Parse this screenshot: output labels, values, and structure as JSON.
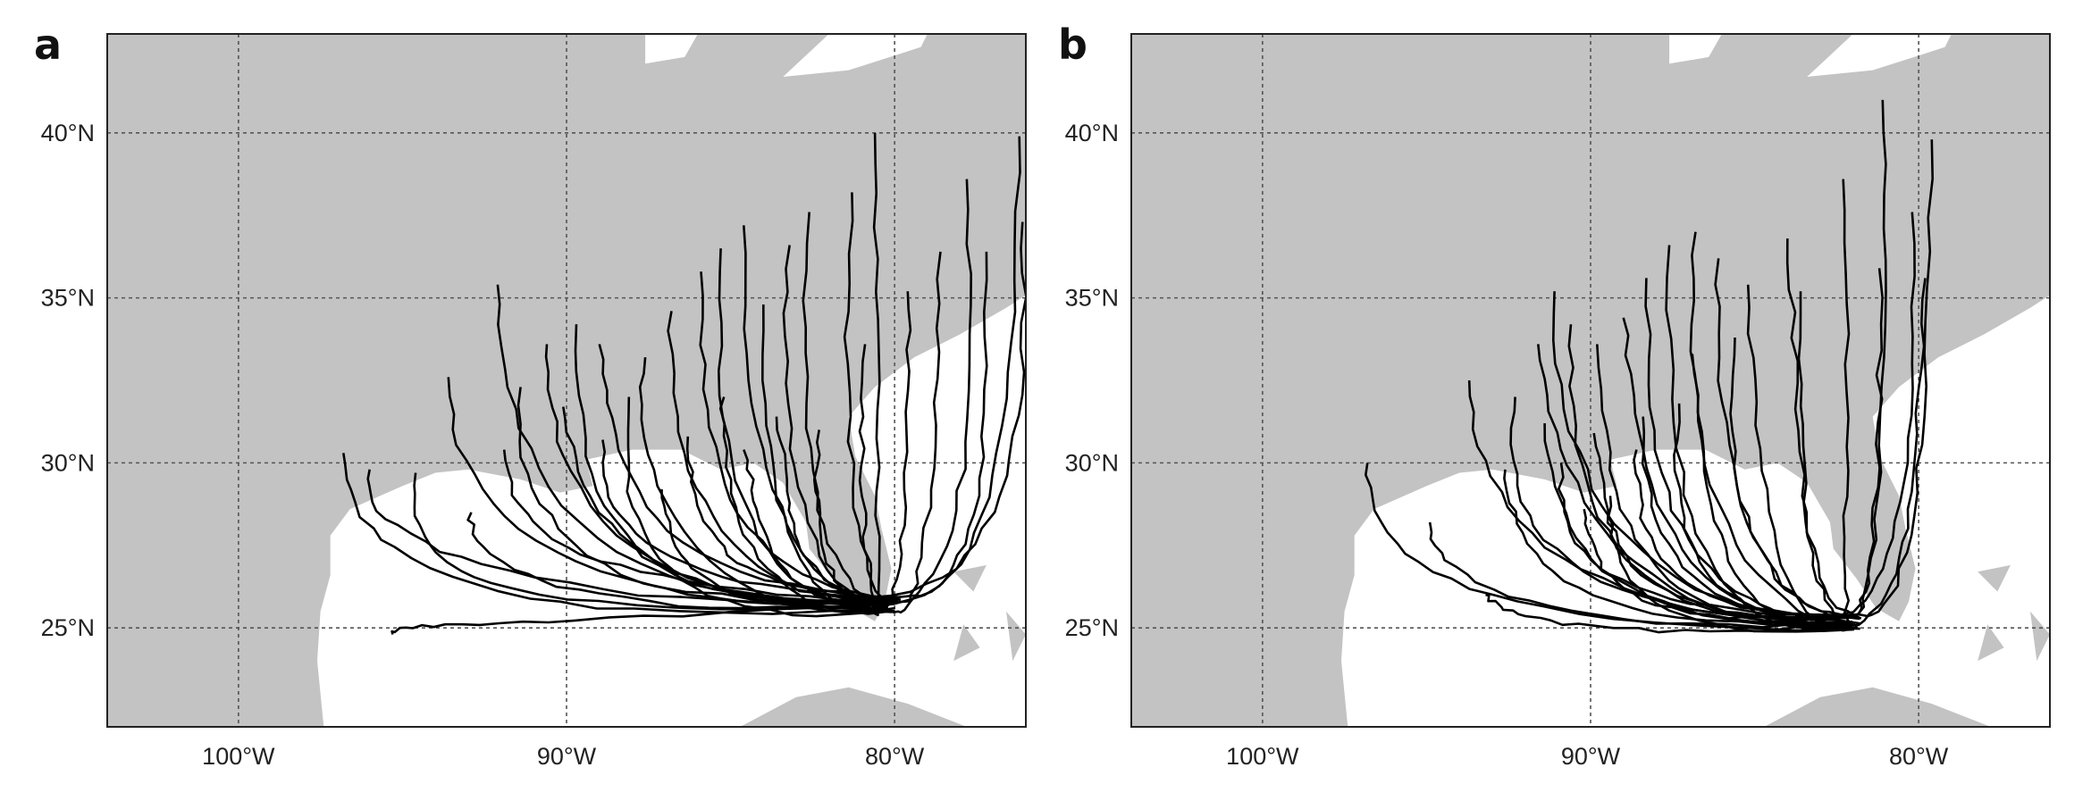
{
  "panels": [
    {
      "label": "a",
      "lon_range": [
        -104,
        -76
      ],
      "lat_range": [
        22,
        43
      ],
      "x_ticks": [
        "100°W",
        "90°W",
        "80°W"
      ],
      "y_ticks": [
        "40°N",
        "35°N",
        "30°N",
        "25°N"
      ],
      "colors": {
        "land": "#c3c3c3",
        "sea": "#ffffff",
        "tracks": "#000000",
        "grid": "#555555"
      },
      "genesis": [
        -80.2,
        25.7
      ],
      "endpoints": [
        [
          -96.8,
          30.3
        ],
        [
          -96.0,
          29.8
        ],
        [
          -93.6,
          32.6
        ],
        [
          -92.1,
          35.4
        ],
        [
          -91.4,
          32.3
        ],
        [
          -90.6,
          33.6
        ],
        [
          -89.7,
          34.2
        ],
        [
          -89.0,
          33.6
        ],
        [
          -88.1,
          32.0
        ],
        [
          -87.6,
          33.2
        ],
        [
          -86.8,
          34.6
        ],
        [
          -85.9,
          35.8
        ],
        [
          -85.3,
          36.5
        ],
        [
          -84.6,
          37.2
        ],
        [
          -84.0,
          34.8
        ],
        [
          -83.2,
          36.6
        ],
        [
          -82.6,
          37.6
        ],
        [
          -81.3,
          38.2
        ],
        [
          -80.6,
          40.0
        ],
        [
          -79.6,
          35.2
        ],
        [
          -78.6,
          36.4
        ],
        [
          -77.8,
          38.6
        ],
        [
          -77.2,
          36.4
        ],
        [
          -76.2,
          39.9
        ],
        [
          -76.1,
          37.3
        ],
        [
          -85.2,
          32.0
        ],
        [
          -83.6,
          31.4
        ],
        [
          -82.3,
          31.0
        ],
        [
          -86.3,
          30.8
        ],
        [
          -80.9,
          33.6
        ],
        [
          -94.6,
          29.7
        ],
        [
          -95.3,
          24.8
        ],
        [
          -92.9,
          28.5
        ],
        [
          -88.9,
          30.7
        ],
        [
          -91.9,
          30.4
        ],
        [
          -90.1,
          31.7
        ],
        [
          -87.1,
          29.2
        ],
        [
          -84.6,
          30.4
        ]
      ]
    },
    {
      "label": "b",
      "lon_range": [
        -104,
        -76
      ],
      "lat_range": [
        22,
        43
      ],
      "x_ticks": [
        "100°W",
        "90°W",
        "80°W"
      ],
      "y_ticks": [
        "40°N",
        "35°N",
        "30°N",
        "25°N"
      ],
      "colors": {
        "land": "#c3c3c3",
        "sea": "#ffffff",
        "tracks": "#000000",
        "grid": "#555555"
      },
      "genesis": [
        -82.1,
        25.2
      ],
      "endpoints": [
        [
          -96.8,
          30.0
        ],
        [
          -93.7,
          32.5
        ],
        [
          -92.3,
          32.0
        ],
        [
          -91.6,
          33.6
        ],
        [
          -91.1,
          35.2
        ],
        [
          -90.6,
          34.2
        ],
        [
          -89.8,
          33.6
        ],
        [
          -89.0,
          34.4
        ],
        [
          -88.3,
          35.6
        ],
        [
          -87.6,
          36.6
        ],
        [
          -86.8,
          37.0
        ],
        [
          -86.1,
          36.2
        ],
        [
          -85.2,
          35.4
        ],
        [
          -84.0,
          36.8
        ],
        [
          -82.3,
          38.6
        ],
        [
          -81.1,
          41.0
        ],
        [
          -79.6,
          39.8
        ],
        [
          -80.2,
          37.6
        ],
        [
          -79.8,
          35.6
        ],
        [
          -81.2,
          35.9
        ],
        [
          -83.6,
          35.2
        ],
        [
          -88.4,
          31.4
        ],
        [
          -90.9,
          30.0
        ],
        [
          -92.6,
          29.8
        ],
        [
          -89.4,
          29.0
        ],
        [
          -90.2,
          28.6
        ],
        [
          -91.4,
          31.2
        ],
        [
          -86.9,
          33.3
        ],
        [
          -85.6,
          33.8
        ],
        [
          -88.6,
          30.4
        ],
        [
          -94.9,
          28.2
        ],
        [
          -93.2,
          26.0
        ],
        [
          -89.9,
          30.9
        ],
        [
          -87.3,
          31.8
        ]
      ]
    }
  ]
}
